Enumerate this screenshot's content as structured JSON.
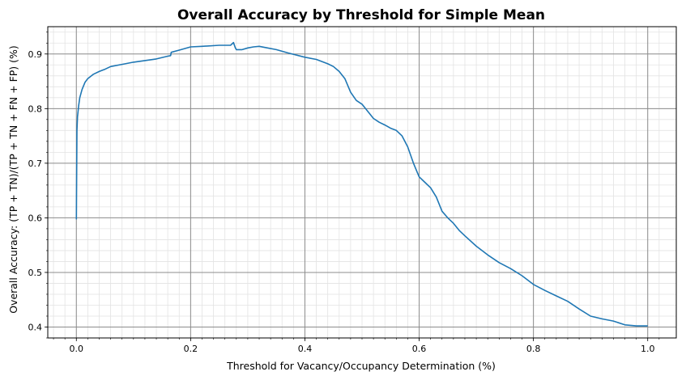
{
  "chart_data": {
    "type": "line",
    "title": "Overall Accuracy by Threshold for Simple Mean",
    "xlabel": "Threshold for Vacancy/Occupancy Determination (%)",
    "ylabel": "Overall Accuracy: (TP + TN)/(TP + TN + FN + FP) (%)",
    "xlim": [
      -0.05,
      1.05
    ],
    "ylim": [
      0.38,
      0.95
    ],
    "x_ticks": [
      0.0,
      0.2,
      0.4,
      0.6,
      0.8,
      1.0
    ],
    "x_tick_labels": [
      "0.0",
      "0.2",
      "0.4",
      "0.6",
      "0.8",
      "1.0"
    ],
    "y_ticks": [
      0.4,
      0.5,
      0.6,
      0.7,
      0.8,
      0.9
    ],
    "y_tick_labels": [
      "0.4",
      "0.5",
      "0.6",
      "0.7",
      "0.8",
      "0.9"
    ],
    "grid": true,
    "minor_grid": true,
    "legend": "none",
    "series": [
      {
        "color": "#1f77b4",
        "x": [
          0.0,
          0.001,
          0.002,
          0.004,
          0.006,
          0.01,
          0.015,
          0.02,
          0.03,
          0.04,
          0.05,
          0.06,
          0.08,
          0.1,
          0.12,
          0.14,
          0.16,
          0.165,
          0.166,
          0.18,
          0.2,
          0.22,
          0.25,
          0.27,
          0.275,
          0.278,
          0.28,
          0.29,
          0.3,
          0.31,
          0.32,
          0.33,
          0.35,
          0.37,
          0.4,
          0.42,
          0.44,
          0.45,
          0.46,
          0.47,
          0.48,
          0.49,
          0.5,
          0.51,
          0.52,
          0.53,
          0.54,
          0.55,
          0.56,
          0.57,
          0.58,
          0.59,
          0.6,
          0.61,
          0.62,
          0.63,
          0.64,
          0.65,
          0.66,
          0.67,
          0.68,
          0.7,
          0.72,
          0.74,
          0.76,
          0.78,
          0.8,
          0.82,
          0.84,
          0.86,
          0.88,
          0.9,
          0.92,
          0.94,
          0.96,
          0.98,
          1.0
        ],
        "y": [
          0.597,
          0.76,
          0.785,
          0.805,
          0.82,
          0.835,
          0.848,
          0.855,
          0.863,
          0.868,
          0.872,
          0.877,
          0.881,
          0.885,
          0.888,
          0.891,
          0.896,
          0.897,
          0.903,
          0.907,
          0.913,
          0.914,
          0.916,
          0.916,
          0.921,
          0.912,
          0.908,
          0.908,
          0.911,
          0.913,
          0.914,
          0.912,
          0.908,
          0.902,
          0.894,
          0.89,
          0.882,
          0.877,
          0.868,
          0.855,
          0.83,
          0.815,
          0.808,
          0.795,
          0.782,
          0.775,
          0.77,
          0.764,
          0.76,
          0.75,
          0.73,
          0.7,
          0.675,
          0.665,
          0.655,
          0.638,
          0.612,
          0.6,
          0.59,
          0.577,
          0.567,
          0.548,
          0.532,
          0.518,
          0.507,
          0.494,
          0.478,
          0.467,
          0.457,
          0.447,
          0.433,
          0.42,
          0.415,
          0.411,
          0.404,
          0.402,
          0.402
        ]
      }
    ]
  }
}
